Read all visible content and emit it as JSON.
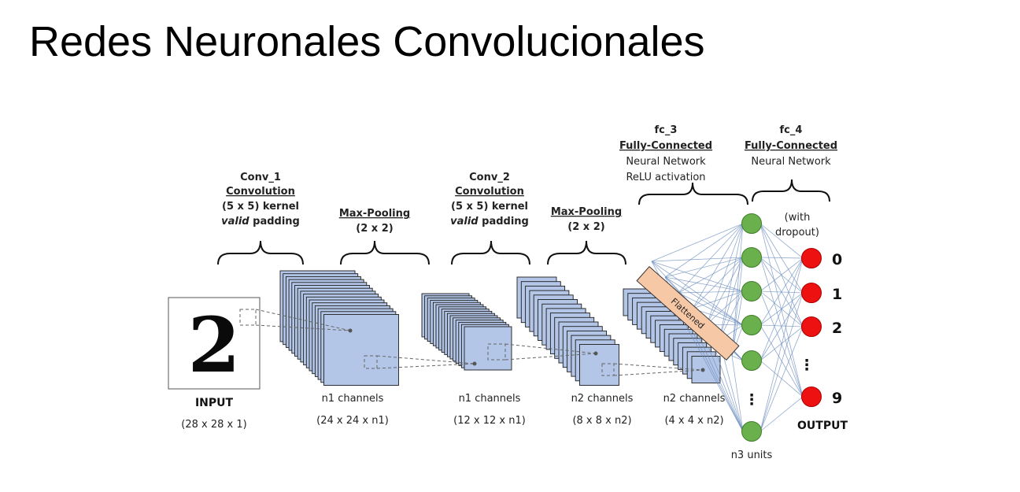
{
  "title": "Redes Neuronales Convolucionales",
  "input": {
    "label": "INPUT",
    "dims": "(28 x 28 x 1)",
    "digit": "2"
  },
  "stages": [
    {
      "key": "conv1",
      "lines": [
        "Conv_1",
        "Convolution",
        "(5 x 5) kernel"
      ],
      "italic_word": "valid",
      "italic_rest": " padding",
      "out_label": "n1 channels",
      "out_dims": "(24 x 24 x n1)"
    },
    {
      "key": "pool1",
      "lines": [
        "Max-Pooling",
        "(2 x 2)"
      ],
      "out_label": "n1 channels",
      "out_dims": "(12 x 12 x n1)"
    },
    {
      "key": "conv2",
      "lines": [
        "Conv_2",
        "Convolution",
        "(5 x 5) kernel"
      ],
      "italic_word": "valid",
      "italic_rest": " padding",
      "out_label": "n2 channels",
      "out_dims": "(8 x 8 x n2)"
    },
    {
      "key": "pool2",
      "lines": [
        "Max-Pooling",
        "(2 x 2)"
      ],
      "out_label": "n2 channels",
      "out_dims": "(4 x 4 x n2)"
    }
  ],
  "fc3": {
    "lines": [
      "fc_3",
      "Fully-Connected",
      "Neural Network",
      "ReLU activation"
    ],
    "flattened": "Flattened",
    "units_label": "n3 units",
    "ellipsis": "⋮"
  },
  "fc4": {
    "lines": [
      "fc_4",
      "Fully-Connected",
      "Neural Network"
    ],
    "dropout_lines": [
      "(with",
      "dropout)"
    ]
  },
  "output": {
    "label": "OUTPUT",
    "classes": [
      "0",
      "1",
      "2",
      "⋮",
      "9"
    ]
  },
  "colors": {
    "feature_map": "#b3c6e7",
    "hidden_node": "#6ab04c",
    "output_node": "#ee1111",
    "flatten_bar": "#f7c8a6",
    "edge": "#6e8ebf"
  }
}
